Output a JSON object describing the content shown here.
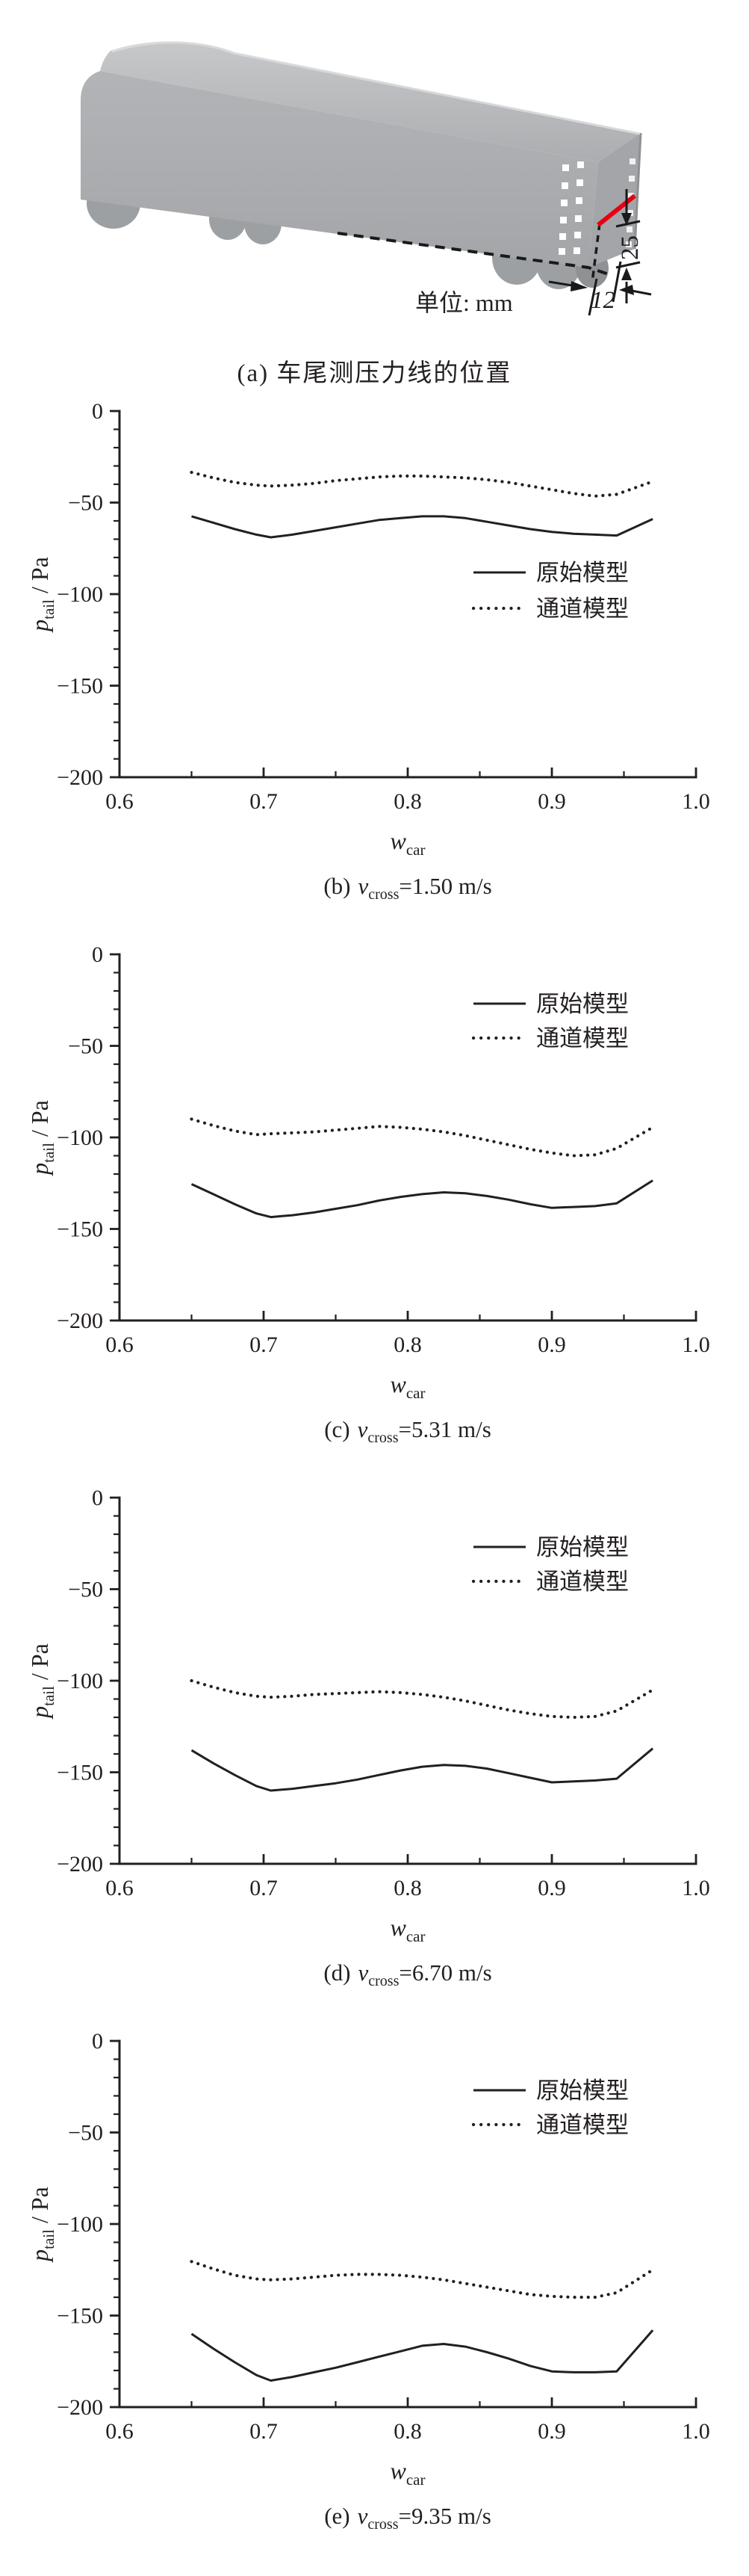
{
  "page": {
    "background": "#ffffff",
    "ink": "#231f20"
  },
  "panel_a": {
    "caption": "(a) 车尾测压力线的位置",
    "unit_label": "单位: mm",
    "dim_vertical": "25",
    "dim_horizontal": "12",
    "truck_roof_color_top": "#c6c8ca",
    "truck_roof_color_bottom": "#abadb0",
    "truck_side_color_top": "#b2b4b7",
    "truck_side_color_bottom": "#a3a5a8",
    "truck_rear_color": "#a3a5a8",
    "wheel_color": "#9da0a3",
    "tap_dot_color": "#ffffff",
    "red_line_color": "#e60012",
    "dashed_line_color": "#1a1a1a"
  },
  "chart_defaults": {
    "ink": "#231f20",
    "xlabel": {
      "var": "w",
      "sub": "car"
    },
    "ylabel": {
      "var": "p",
      "sub": "tail",
      "rest": " / Pa"
    },
    "xlim": [
      0.6,
      1.0
    ],
    "ylim": [
      -200,
      0
    ],
    "xticks": [
      0.6,
      0.7,
      0.8,
      0.9,
      1.0
    ],
    "yticks": [
      0,
      -50,
      -100,
      -150,
      -200
    ],
    "x_minor_step": 0.05,
    "y_minor_step": 10,
    "grid": false
  },
  "chart_data": [
    {
      "id": "b",
      "type": "line",
      "caption": {
        "prefix": "(b)",
        "var": "v",
        "sub": "cross",
        "rest": "=1.50 m/s"
      },
      "legend_position": "middle-right",
      "x": [
        0.65,
        0.665,
        0.68,
        0.695,
        0.705,
        0.72,
        0.735,
        0.75,
        0.765,
        0.78,
        0.795,
        0.81,
        0.825,
        0.84,
        0.855,
        0.87,
        0.885,
        0.9,
        0.915,
        0.93,
        0.945,
        0.97
      ],
      "series": [
        {
          "name": "原始模型",
          "style": "solid",
          "values": [
            -57.5,
            -61,
            -64.5,
            -67.5,
            -69,
            -67.5,
            -65.5,
            -63.5,
            -61.5,
            -59.5,
            -58.5,
            -57.5,
            -57.5,
            -58.5,
            -60.5,
            -62.5,
            -64.5,
            -66,
            -67,
            -67.5,
            -68,
            -59
          ]
        },
        {
          "name": "通道模型",
          "style": "dotted",
          "values": [
            -33.5,
            -36.5,
            -39,
            -40.5,
            -41,
            -40.5,
            -39.5,
            -38,
            -37,
            -36,
            -35.5,
            -35.5,
            -36,
            -36.5,
            -37.5,
            -39,
            -41,
            -43,
            -45,
            -46.5,
            -45.5,
            -38.5
          ]
        }
      ]
    },
    {
      "id": "c",
      "type": "line",
      "caption": {
        "prefix": "(c)",
        "var": "v",
        "sub": "cross",
        "rest": "=5.31 m/s"
      },
      "legend_position": "top-right",
      "x": [
        0.65,
        0.665,
        0.68,
        0.695,
        0.705,
        0.72,
        0.735,
        0.75,
        0.765,
        0.78,
        0.795,
        0.81,
        0.825,
        0.84,
        0.855,
        0.87,
        0.885,
        0.9,
        0.915,
        0.93,
        0.945,
        0.97
      ],
      "series": [
        {
          "name": "原始模型",
          "style": "solid",
          "values": [
            -125.5,
            -131,
            -136.5,
            -141.5,
            -143.5,
            -142.5,
            -141,
            -139,
            -137,
            -134.5,
            -132.5,
            -131,
            -130,
            -130.5,
            -132,
            -134,
            -136.5,
            -138.5,
            -138,
            -137.5,
            -136,
            -123.5
          ]
        },
        {
          "name": "通道模型",
          "style": "dotted",
          "values": [
            -90,
            -93.5,
            -96.5,
            -98.5,
            -98,
            -97.5,
            -97,
            -96,
            -95,
            -94,
            -94.5,
            -95.5,
            -97,
            -99,
            -101.5,
            -104,
            -106.5,
            -108.5,
            -110,
            -109.5,
            -106,
            -94.5
          ]
        }
      ]
    },
    {
      "id": "d",
      "type": "line",
      "caption": {
        "prefix": "(d)",
        "var": "v",
        "sub": "cross",
        "rest": "=6.70 m/s"
      },
      "legend_position": "top-right",
      "x": [
        0.65,
        0.665,
        0.68,
        0.695,
        0.705,
        0.72,
        0.735,
        0.75,
        0.765,
        0.78,
        0.795,
        0.81,
        0.825,
        0.84,
        0.855,
        0.87,
        0.885,
        0.9,
        0.915,
        0.93,
        0.945,
        0.97
      ],
      "series": [
        {
          "name": "原始模型",
          "style": "solid",
          "values": [
            -138,
            -145,
            -151.5,
            -157.5,
            -160,
            -159,
            -157.5,
            -156,
            -154,
            -151.5,
            -149,
            -147,
            -146,
            -146.5,
            -148,
            -150.5,
            -153,
            -155.5,
            -155,
            -154.5,
            -153.5,
            -137
          ]
        },
        {
          "name": "通道模型",
          "style": "dotted",
          "values": [
            -100,
            -103.5,
            -106.5,
            -108.5,
            -109,
            -108.5,
            -107.5,
            -107,
            -106.5,
            -106,
            -106.5,
            -107.5,
            -109,
            -111,
            -113.5,
            -116,
            -118,
            -119.5,
            -120,
            -119.5,
            -116.5,
            -105
          ]
        }
      ]
    },
    {
      "id": "e",
      "type": "line",
      "caption": {
        "prefix": "(e)",
        "var": "v",
        "sub": "cross",
        "rest": "=9.35 m/s"
      },
      "legend_position": "top-right",
      "x": [
        0.65,
        0.665,
        0.68,
        0.695,
        0.705,
        0.72,
        0.735,
        0.75,
        0.765,
        0.78,
        0.795,
        0.81,
        0.825,
        0.84,
        0.855,
        0.87,
        0.885,
        0.9,
        0.915,
        0.93,
        0.945,
        0.97
      ],
      "series": [
        {
          "name": "原始模型",
          "style": "solid",
          "values": [
            -160,
            -168,
            -175.5,
            -182.5,
            -185.5,
            -183.5,
            -181,
            -178.5,
            -175.5,
            -172.5,
            -169.5,
            -166.5,
            -165.5,
            -167,
            -170,
            -173.5,
            -177.5,
            -180.5,
            -181,
            -181,
            -180.5,
            -158
          ]
        },
        {
          "name": "通道模型",
          "style": "dotted",
          "values": [
            -120.5,
            -124.5,
            -128,
            -130,
            -130.5,
            -130,
            -129,
            -128,
            -127.5,
            -127.5,
            -128,
            -129,
            -130.5,
            -132.5,
            -134.5,
            -136.5,
            -138.5,
            -139.5,
            -140,
            -140,
            -137.5,
            -125
          ]
        }
      ]
    }
  ]
}
